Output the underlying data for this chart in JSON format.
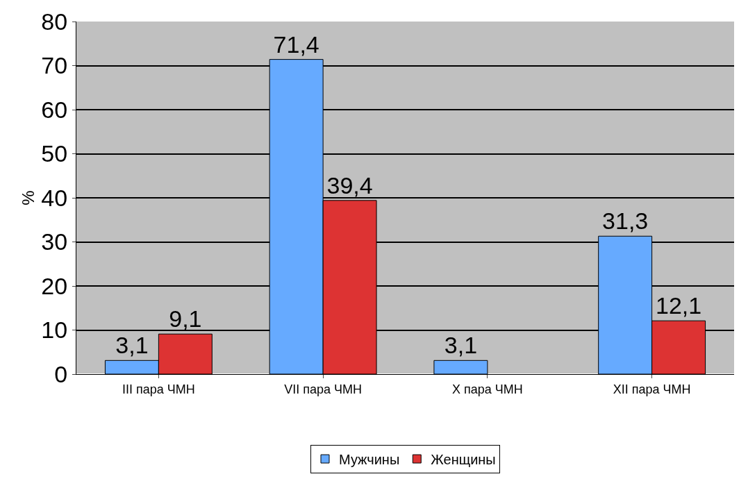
{
  "chart_data": {
    "type": "bar",
    "ylabel": "%",
    "categories": [
      "III пара ЧМН",
      "VII пара ЧМН",
      "X пара ЧМН",
      "XII пара ЧМН"
    ],
    "series": [
      {
        "name": "Мужчины",
        "color": "#66aaff",
        "values": [
          3.1,
          71.4,
          3.1,
          31.3
        ],
        "value_labels": [
          "3,1",
          "71,4",
          "3,1",
          "31,3"
        ]
      },
      {
        "name": "Женщины",
        "color": "#dd3333",
        "values": [
          9.1,
          39.4,
          null,
          12.1
        ],
        "value_labels": [
          "9,1",
          "39,4",
          null,
          "12,1"
        ]
      }
    ],
    "ylim": [
      0,
      80
    ],
    "yticks": [
      0,
      10,
      20,
      30,
      40,
      50,
      60,
      70,
      80
    ],
    "grid": "y",
    "legend": "bottom"
  }
}
